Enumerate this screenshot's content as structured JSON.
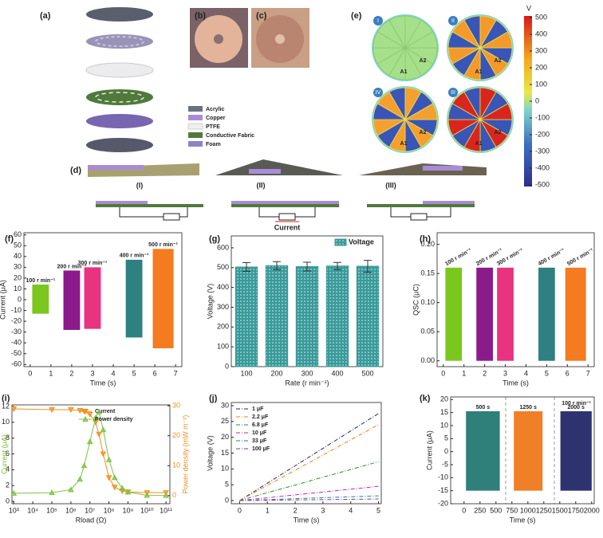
{
  "diagram_a": {
    "label": "(a)",
    "legend": [
      "Acrylic",
      "Copper",
      "PTFE",
      "Conductive Fabric",
      "Foam"
    ]
  },
  "photos": {
    "labels": [
      "(b)",
      "(c)"
    ]
  },
  "simulation_e": {
    "label": "(e)",
    "unit": "V",
    "colorbar_ticks": [
      500,
      400,
      300,
      200,
      100,
      0,
      -100,
      -200,
      -300,
      -400,
      -500
    ],
    "states": [
      "I",
      "II",
      "IV",
      "III"
    ],
    "electrodes": [
      "A1",
      "A2"
    ]
  },
  "diagram_d": {
    "label": "(d)",
    "states": [
      "(I)",
      "(II)",
      "(III)"
    ],
    "current_label": "Current"
  },
  "chart_data": [
    {
      "type": "envelope",
      "panel": "(f)",
      "xlabel": "Time (s)",
      "ylabel": "Current (μA)",
      "xlim": [
        -0.3,
        7.3
      ],
      "xticks": [
        0,
        1,
        2,
        3,
        4,
        5,
        6,
        7
      ],
      "ylim": [
        -62,
        62
      ],
      "yticks": [
        -60,
        -50,
        -40,
        -30,
        -20,
        -10,
        0,
        10,
        20,
        30,
        40,
        50,
        60
      ],
      "series": [
        {
          "name": "100 r min⁻¹",
          "color": "#7cc71e",
          "x": [
            0.1,
            0.9
          ],
          "values": [
            -13,
            14
          ]
        },
        {
          "name": "200 r min⁻¹",
          "color": "#8b1a8b",
          "x": [
            1.6,
            2.4
          ],
          "values": [
            -28,
            27
          ]
        },
        {
          "name": "300 r min⁻¹",
          "color": "#e8337e",
          "x": [
            2.6,
            3.4
          ],
          "values": [
            -27,
            30
          ]
        },
        {
          "name": "400 r min⁻¹",
          "color": "#2f8080",
          "x": [
            4.6,
            5.4
          ],
          "values": [
            -35,
            37
          ]
        },
        {
          "name": "500 r min⁻¹",
          "color": "#f47b20",
          "x": [
            5.9,
            6.9
          ],
          "values": [
            -45,
            47
          ]
        }
      ]
    },
    {
      "type": "bar",
      "panel": "(g)",
      "xlabel": "Rate (r min⁻¹)",
      "ylabel": "Voltage (V)",
      "categories": [
        "100",
        "200",
        "300",
        "400",
        "500"
      ],
      "ylim": [
        0,
        660
      ],
      "yticks": [
        0,
        100,
        200,
        300,
        400,
        500,
        600
      ],
      "legend": "upper right",
      "series": [
        {
          "name": "Voltage",
          "color": "#3a9a9a",
          "values": [
            503,
            510,
            505,
            508,
            507
          ],
          "errors": [
            22,
            20,
            22,
            18,
            30
          ]
        }
      ]
    },
    {
      "type": "envelope",
      "panel": "(h)",
      "xlabel": "Time (s)",
      "ylabel": "QSC (μC)",
      "xlim": [
        -0.3,
        7.3
      ],
      "xticks": [
        0,
        1,
        2,
        3,
        4,
        5,
        6,
        7
      ],
      "ylim": [
        -0.01,
        0.22
      ],
      "yticks": [
        {
          "value": 0,
          "label": "0.00"
        },
        0.05,
        {
          "value": 0.1,
          "label": "0.10"
        },
        0.15,
        {
          "value": 0.2,
          "label": "0.20"
        }
      ],
      "series": [
        {
          "name": "100 r min⁻¹",
          "color": "#7cc71e",
          "x": [
            0.1,
            0.9
          ],
          "values": [
            0,
            0.16
          ]
        },
        {
          "name": "200 r min⁻¹",
          "color": "#8b1a8b",
          "x": [
            1.6,
            2.4
          ],
          "values": [
            0,
            0.16
          ]
        },
        {
          "name": "300 r min⁻¹",
          "color": "#e8337e",
          "x": [
            2.6,
            3.4
          ],
          "values": [
            0,
            0.16
          ]
        },
        {
          "name": "400 r min⁻¹",
          "color": "#2f8080",
          "x": [
            4.6,
            5.4
          ],
          "values": [
            0,
            0.16
          ]
        },
        {
          "name": "500 r min⁻¹",
          "color": "#f47b20",
          "x": [
            5.9,
            6.9
          ],
          "values": [
            0,
            0.16
          ]
        }
      ]
    },
    {
      "type": "line",
      "panel": "(i)",
      "xlabel": "Rload (Ω)",
      "ylabel": "Current (μA)",
      "y2label": "Power density (mW m⁻²)",
      "xscale": "log",
      "legend": "upper center",
      "xlim": [
        800,
        160000000000
      ],
      "xticks": [
        {
          "value": 1000,
          "label": "10³"
        },
        {
          "value": 10000,
          "label": "10⁴"
        },
        {
          "value": 100000,
          "label": "10⁵"
        },
        {
          "value": 1000000,
          "label": "10⁶"
        },
        {
          "value": 10000000,
          "label": "10⁷"
        },
        {
          "value": 100000000,
          "label": "10⁸"
        },
        {
          "value": 1000000000,
          "label": "10⁹"
        },
        {
          "value": 10000000000,
          "label": "10¹⁰"
        },
        {
          "value": 100000000000,
          "label": "10¹¹"
        }
      ],
      "ylim": [
        -0.3,
        12.2
      ],
      "yticks": [
        0,
        2,
        4,
        6,
        8,
        10,
        12
      ],
      "y2lim": [
        -2.7,
        30.3
      ],
      "y2ticks": [
        0,
        10,
        20,
        30
      ],
      "x": [
        1000,
        100000,
        1000000,
        3000000,
        5000000,
        10000000,
        20000000,
        30000000,
        50000000,
        100000000,
        200000000,
        500000000,
        1000000000,
        10000000000,
        100000000000
      ],
      "series": [
        {
          "name": "Current",
          "color": "#f28e1c",
          "marker": "v",
          "values": [
            11.7,
            11.6,
            11.6,
            11.5,
            11.4,
            11.0,
            10.0,
            8.5,
            6.0,
            3.0,
            1.8,
            1.3,
            1.2,
            1.1,
            1.1
          ]
        },
        {
          "name": "Power density",
          "color": "#7cc242",
          "marker": "^",
          "axis": "y2",
          "values": [
            0.8,
            1.0,
            2.0,
            5.5,
            10,
            18,
            26,
            28,
            22,
            12,
            6,
            2.5,
            1.2,
            0.1,
            0.05
          ]
        }
      ]
    },
    {
      "type": "line",
      "panel": "(j)",
      "xlabel": "Time (s)",
      "ylabel": "Voltage (V)",
      "legend": "upper left",
      "xlim": [
        -0.3,
        5.1
      ],
      "xticks": [
        0,
        1,
        2,
        3,
        4,
        5
      ],
      "ylim": [
        -1,
        31
      ],
      "yticks": [
        0,
        5,
        10,
        15,
        20,
        25,
        30
      ],
      "x": [
        0,
        1,
        2,
        3,
        4,
        5
      ],
      "series": [
        {
          "name": "1 μF",
          "color": "#23236e",
          "linestyle": "dashdot",
          "values": [
            0,
            5.5,
            11,
            16.5,
            22,
            27.5
          ]
        },
        {
          "name": "2.2 μF",
          "color": "#f47b20",
          "linestyle": "dashdot",
          "values": [
            0,
            4.8,
            9.6,
            14.4,
            19.2,
            24
          ]
        },
        {
          "name": "6.8 μF",
          "color": "#2e8b2e",
          "linestyle": "dashdot",
          "values": [
            0,
            2.5,
            4.9,
            7.4,
            9.8,
            12.3
          ]
        },
        {
          "name": "10 μF",
          "color": "#c71fc7",
          "linestyle": "dashdot",
          "values": [
            0,
            0.9,
            1.8,
            2.7,
            3.6,
            4.5
          ]
        },
        {
          "name": "33 μF",
          "color": "#2a7d7d",
          "linestyle": "dashdot",
          "values": [
            0,
            0.3,
            0.6,
            0.9,
            1.2,
            1.5
          ]
        },
        {
          "name": "100 μF",
          "color": "#6b3fa0",
          "linestyle": "dashdot",
          "values": [
            0,
            0.1,
            0.2,
            0.3,
            0.4,
            0.5
          ]
        }
      ]
    },
    {
      "type": "envelope",
      "panel": "(k)",
      "xlabel": "Time (s)",
      "ylabel": "Current (μA)",
      "annotation": "100 r min⁻¹",
      "xlim": [
        -210,
        2040
      ],
      "xticks": [
        0,
        250,
        500,
        750,
        1000,
        1250,
        1500,
        1750,
        2000
      ],
      "ylim": [
        -20,
        21
      ],
      "yticks": [
        -20,
        -15,
        -10,
        -5,
        0,
        5,
        10,
        15,
        20
      ],
      "series": [
        {
          "name": "500 s",
          "color": "#2f7f7a",
          "x": [
            30,
            560
          ],
          "values": [
            -15,
            15.5
          ]
        },
        {
          "name": "1250 s",
          "color": "#f07f28",
          "x": [
            780,
            1230
          ],
          "values": [
            -15,
            15.5
          ]
        },
        {
          "name": "2000 s",
          "color": "#2e3370",
          "x": [
            1510,
            2000
          ],
          "values": [
            -15,
            15.5
          ]
        }
      ]
    }
  ]
}
